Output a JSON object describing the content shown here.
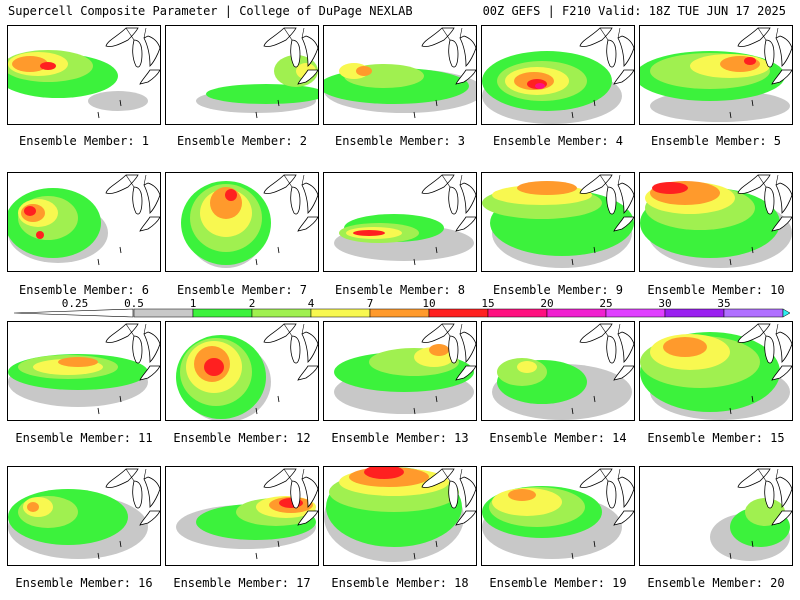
{
  "header": {
    "left_title": "Supercell Composite Parameter | College of DuPage NEXLAB",
    "right_title": "00Z GEFS | F210 Valid: 18Z TUE JUN 17 2025"
  },
  "member_label_prefix": "Ensemble Member: ",
  "members": [
    "1",
    "2",
    "3",
    "4",
    "5",
    "6",
    "7",
    "8",
    "9",
    "10",
    "11",
    "12",
    "13",
    "14",
    "15",
    "16",
    "17",
    "18",
    "19",
    "20"
  ],
  "colorbar": {
    "thresholds": [
      "0.25",
      "0.5",
      "1",
      "2",
      "4",
      "7",
      "10",
      "15",
      "20",
      "25",
      "30",
      "35"
    ],
    "colors": [
      "#c8c8c8",
      "#3cf23c",
      "#a0f050",
      "#f8f850",
      "#ff9a2c",
      "#ff2020",
      "#ff1080",
      "#f020d0",
      "#e040ff",
      "#9a20f0",
      "#b070ff",
      "#30f0f0"
    ]
  },
  "fill_colors": {
    "gray": "#c8c8c8",
    "green": "#3cf23c",
    "lightgreen": "#a0f050",
    "yellow": "#f8f850",
    "orange": "#ff9a2c",
    "red": "#ff2020",
    "magenta": "#ff1080"
  }
}
